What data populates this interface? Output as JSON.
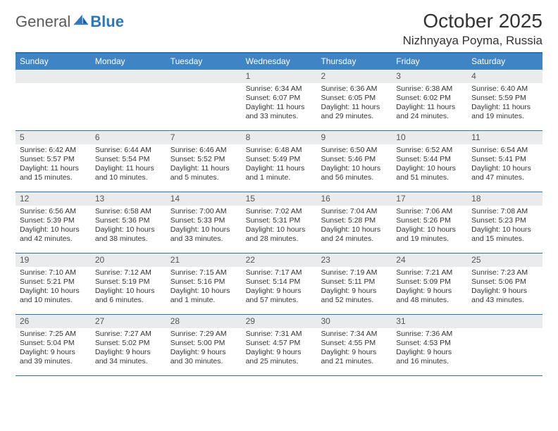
{
  "logo": {
    "text1": "General",
    "text2": "Blue"
  },
  "title": "October 2025",
  "location": "Nizhnyaya Poyma, Russia",
  "colors": {
    "header_bg": "#3f84c4",
    "rule": "#2f6fa8",
    "daynum_bg": "#e9ebec",
    "logo_gray": "#5a5a5a",
    "logo_blue": "#2f76b8"
  },
  "day_headers": [
    "Sunday",
    "Monday",
    "Tuesday",
    "Wednesday",
    "Thursday",
    "Friday",
    "Saturday"
  ],
  "weeks": [
    [
      null,
      null,
      null,
      {
        "n": "1",
        "sr": "6:34 AM",
        "ss": "6:07 PM",
        "dl": "11 hours and 33 minutes."
      },
      {
        "n": "2",
        "sr": "6:36 AM",
        "ss": "6:05 PM",
        "dl": "11 hours and 29 minutes."
      },
      {
        "n": "3",
        "sr": "6:38 AM",
        "ss": "6:02 PM",
        "dl": "11 hours and 24 minutes."
      },
      {
        "n": "4",
        "sr": "6:40 AM",
        "ss": "5:59 PM",
        "dl": "11 hours and 19 minutes."
      }
    ],
    [
      {
        "n": "5",
        "sr": "6:42 AM",
        "ss": "5:57 PM",
        "dl": "11 hours and 15 minutes."
      },
      {
        "n": "6",
        "sr": "6:44 AM",
        "ss": "5:54 PM",
        "dl": "11 hours and 10 minutes."
      },
      {
        "n": "7",
        "sr": "6:46 AM",
        "ss": "5:52 PM",
        "dl": "11 hours and 5 minutes."
      },
      {
        "n": "8",
        "sr": "6:48 AM",
        "ss": "5:49 PM",
        "dl": "11 hours and 1 minute."
      },
      {
        "n": "9",
        "sr": "6:50 AM",
        "ss": "5:46 PM",
        "dl": "10 hours and 56 minutes."
      },
      {
        "n": "10",
        "sr": "6:52 AM",
        "ss": "5:44 PM",
        "dl": "10 hours and 51 minutes."
      },
      {
        "n": "11",
        "sr": "6:54 AM",
        "ss": "5:41 PM",
        "dl": "10 hours and 47 minutes."
      }
    ],
    [
      {
        "n": "12",
        "sr": "6:56 AM",
        "ss": "5:39 PM",
        "dl": "10 hours and 42 minutes."
      },
      {
        "n": "13",
        "sr": "6:58 AM",
        "ss": "5:36 PM",
        "dl": "10 hours and 38 minutes."
      },
      {
        "n": "14",
        "sr": "7:00 AM",
        "ss": "5:33 PM",
        "dl": "10 hours and 33 minutes."
      },
      {
        "n": "15",
        "sr": "7:02 AM",
        "ss": "5:31 PM",
        "dl": "10 hours and 28 minutes."
      },
      {
        "n": "16",
        "sr": "7:04 AM",
        "ss": "5:28 PM",
        "dl": "10 hours and 24 minutes."
      },
      {
        "n": "17",
        "sr": "7:06 AM",
        "ss": "5:26 PM",
        "dl": "10 hours and 19 minutes."
      },
      {
        "n": "18",
        "sr": "7:08 AM",
        "ss": "5:23 PM",
        "dl": "10 hours and 15 minutes."
      }
    ],
    [
      {
        "n": "19",
        "sr": "7:10 AM",
        "ss": "5:21 PM",
        "dl": "10 hours and 10 minutes."
      },
      {
        "n": "20",
        "sr": "7:12 AM",
        "ss": "5:19 PM",
        "dl": "10 hours and 6 minutes."
      },
      {
        "n": "21",
        "sr": "7:15 AM",
        "ss": "5:16 PM",
        "dl": "10 hours and 1 minute."
      },
      {
        "n": "22",
        "sr": "7:17 AM",
        "ss": "5:14 PM",
        "dl": "9 hours and 57 minutes."
      },
      {
        "n": "23",
        "sr": "7:19 AM",
        "ss": "5:11 PM",
        "dl": "9 hours and 52 minutes."
      },
      {
        "n": "24",
        "sr": "7:21 AM",
        "ss": "5:09 PM",
        "dl": "9 hours and 48 minutes."
      },
      {
        "n": "25",
        "sr": "7:23 AM",
        "ss": "5:06 PM",
        "dl": "9 hours and 43 minutes."
      }
    ],
    [
      {
        "n": "26",
        "sr": "7:25 AM",
        "ss": "5:04 PM",
        "dl": "9 hours and 39 minutes."
      },
      {
        "n": "27",
        "sr": "7:27 AM",
        "ss": "5:02 PM",
        "dl": "9 hours and 34 minutes."
      },
      {
        "n": "28",
        "sr": "7:29 AM",
        "ss": "5:00 PM",
        "dl": "9 hours and 30 minutes."
      },
      {
        "n": "29",
        "sr": "7:31 AM",
        "ss": "4:57 PM",
        "dl": "9 hours and 25 minutes."
      },
      {
        "n": "30",
        "sr": "7:34 AM",
        "ss": "4:55 PM",
        "dl": "9 hours and 21 minutes."
      },
      {
        "n": "31",
        "sr": "7:36 AM",
        "ss": "4:53 PM",
        "dl": "9 hours and 16 minutes."
      },
      null
    ]
  ],
  "labels": {
    "sunrise": "Sunrise:",
    "sunset": "Sunset:",
    "daylight": "Daylight:"
  }
}
